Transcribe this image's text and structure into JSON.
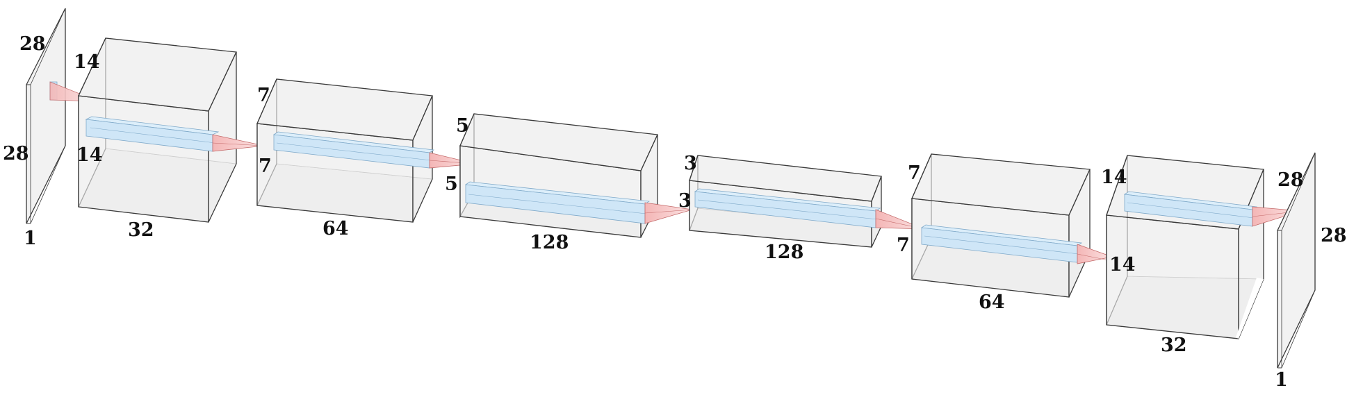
{
  "network": {
    "input_plane": {
      "height_label": "28",
      "depth_label": "28",
      "channels_label": "1"
    },
    "encoder_block_1": {
      "height_label": "14",
      "depth_label": "14",
      "channels_label": "32"
    },
    "encoder_block_2": {
      "height_label": "7",
      "depth_label": "7",
      "channels_label": "64"
    },
    "encoder_block_3": {
      "height_label": "5",
      "depth_label": "5",
      "channels_label": "128"
    },
    "decoder_block_1": {
      "height_label": "3",
      "depth_label": "3",
      "channels_label": "128"
    },
    "decoder_block_2": {
      "height_label": "7",
      "depth_label": "7",
      "channels_label": "64"
    },
    "decoder_block_3": {
      "height_label": "14",
      "depth_label": "14",
      "channels_label": "32"
    },
    "output_plane": {
      "height_label": "28",
      "depth_label": "28",
      "channels_label": "1"
    }
  },
  "colors": {
    "block_face": "#f2f2f2",
    "block_edge": "#3a3a3a",
    "kernel_bar": "#cfe6f7",
    "kernel_bar_edge": "#7fa9c9",
    "projection_cone": "#f6c9c9",
    "projection_cone_edge": "#c46a6a"
  }
}
